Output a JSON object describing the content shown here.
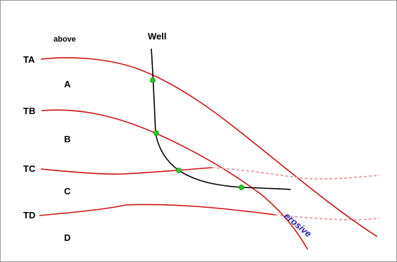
{
  "labels": {
    "above": "above",
    "well": "Well",
    "erosive": "erosive"
  },
  "horizons": [
    {
      "id": "ta",
      "label": "TA"
    },
    {
      "id": "tb",
      "label": "TB"
    },
    {
      "id": "tc",
      "label": "TC"
    },
    {
      "id": "td",
      "label": "TD"
    }
  ],
  "zones": [
    {
      "id": "a",
      "label": "A"
    },
    {
      "id": "b",
      "label": "B"
    },
    {
      "id": "c",
      "label": "C"
    },
    {
      "id": "d",
      "label": "D"
    }
  ],
  "colors": {
    "horizon": "#cc1111",
    "projected": "#e89090",
    "well": "#000000",
    "marker": "#22cc22",
    "erosive_text": "#1a1aa8"
  }
}
